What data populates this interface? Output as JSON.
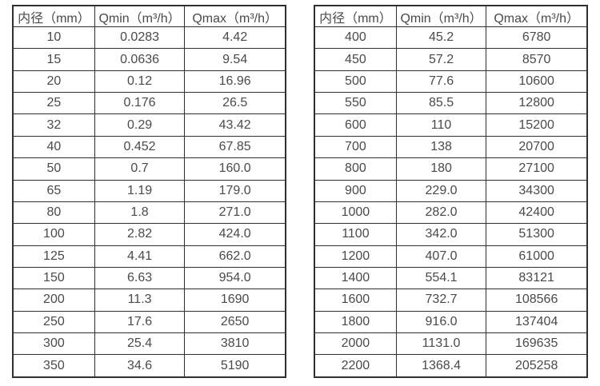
{
  "page": {
    "background_color": "#ffffff",
    "border_color": "#2f2f2f",
    "text_color": "#4a4a4a"
  },
  "tables": [
    {
      "name": "flow-table-small-diameters",
      "headers": [
        "内径（mm）",
        "Qmin（m³/h）",
        "Qmax（m³/h）"
      ],
      "rows": [
        [
          "10",
          "0.0283",
          "4.42"
        ],
        [
          "15",
          "0.0636",
          "9.54"
        ],
        [
          "20",
          "0.12",
          "16.96"
        ],
        [
          "25",
          "0.176",
          "26.5"
        ],
        [
          "32",
          "0.29",
          "43.42"
        ],
        [
          "40",
          "0.452",
          "67.85"
        ],
        [
          "50",
          "0.7",
          "160.0"
        ],
        [
          "65",
          "1.19",
          "179.0"
        ],
        [
          "80",
          "1.8",
          "271.0"
        ],
        [
          "100",
          "2.82",
          "424.0"
        ],
        [
          "125",
          "4.41",
          "662.0"
        ],
        [
          "150",
          "6.63",
          "954.0"
        ],
        [
          "200",
          "11.3",
          "1690"
        ],
        [
          "250",
          "17.6",
          "2650"
        ],
        [
          "300",
          "25.4",
          "3810"
        ],
        [
          "350",
          "34.6",
          "5190"
        ]
      ]
    },
    {
      "name": "flow-table-large-diameters",
      "headers": [
        "内径（mm）",
        "Qmin（m³/h）",
        "Qmax（m³/h）"
      ],
      "rows": [
        [
          "400",
          "45.2",
          "6780"
        ],
        [
          "450",
          "57.2",
          "8570"
        ],
        [
          "500",
          "77.6",
          "10600"
        ],
        [
          "550",
          "85.5",
          "12800"
        ],
        [
          "600",
          "110",
          "15200"
        ],
        [
          "700",
          "138",
          "20700"
        ],
        [
          "800",
          "180",
          "27100"
        ],
        [
          "900",
          "229.0",
          "34300"
        ],
        [
          "1000",
          "282.0",
          "42400"
        ],
        [
          "1100",
          "342.0",
          "51300"
        ],
        [
          "1200",
          "407.0",
          "61000"
        ],
        [
          "1400",
          "554.1",
          "83121"
        ],
        [
          "1600",
          "732.7",
          "108566"
        ],
        [
          "1800",
          "916.0",
          "137404"
        ],
        [
          "2000",
          "1131.0",
          "169635"
        ],
        [
          "2200",
          "1368.4",
          "205258"
        ]
      ]
    }
  ]
}
